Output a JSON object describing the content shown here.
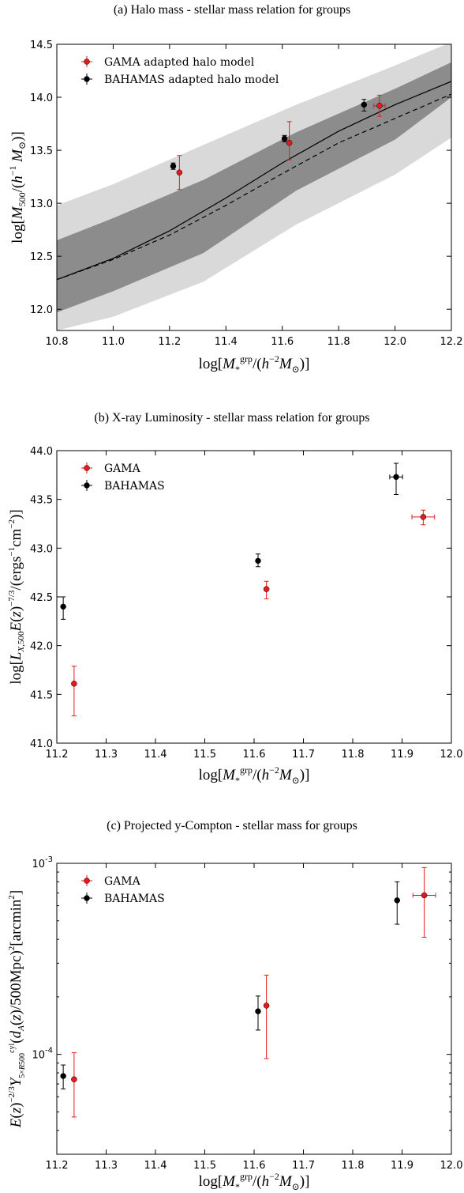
{
  "chart_data": [
    {
      "type": "line",
      "caption": "(a) Halo mass - stellar mass relation for groups",
      "xlabel": "log[M_*^grp/(h^-2 M_⊙)]",
      "ylabel": "log[M_500/(h^-1 M_⊙)]",
      "xlim": [
        10.8,
        12.2
      ],
      "ylim": [
        11.8,
        14.5
      ],
      "xticks": [
        "10.8",
        "11.0",
        "11.2",
        "11.4",
        "11.6",
        "11.8",
        "12.0",
        "12.2"
      ],
      "yticks": [
        "12.0",
        "12.5",
        "13.0",
        "13.5",
        "14.0",
        "14.5"
      ],
      "bands": [
        {
          "kind": "outer",
          "color": "#d9d9d9",
          "x": [
            10.8,
            11.0,
            11.32,
            11.65,
            12.0,
            12.2
          ],
          "upper": [
            12.98,
            13.18,
            13.55,
            13.93,
            14.3,
            14.52
          ],
          "lower": [
            11.8,
            11.93,
            12.26,
            12.8,
            13.27,
            13.62
          ]
        },
        {
          "kind": "inner",
          "color": "#8c8c8c",
          "x": [
            10.8,
            11.0,
            11.32,
            11.65,
            12.0,
            12.2
          ],
          "upper": [
            12.65,
            12.86,
            13.22,
            13.67,
            14.08,
            14.33
          ],
          "lower": [
            11.97,
            12.17,
            12.53,
            13.12,
            13.6,
            14.0
          ]
        }
      ],
      "lines": [
        {
          "style": "solid",
          "x": [
            10.8,
            11.0,
            11.2,
            11.4,
            11.6,
            11.8,
            12.0,
            12.2
          ],
          "y": [
            12.28,
            12.48,
            12.74,
            13.05,
            13.38,
            13.68,
            13.93,
            14.15
          ]
        },
        {
          "style": "dashed",
          "x": [
            10.8,
            11.0,
            11.2,
            11.4,
            11.6,
            11.8,
            12.0,
            12.2
          ],
          "y": [
            12.28,
            12.47,
            12.7,
            12.98,
            13.28,
            13.57,
            13.8,
            14.03
          ]
        }
      ],
      "series": [
        {
          "name": "GAMA adapted halo model",
          "color": "#e41a1c",
          "x": [
            11.235,
            11.625,
            11.945
          ],
          "y": [
            13.29,
            13.57,
            13.92
          ],
          "yerr_low": [
            0.16,
            0.16,
            0.1
          ],
          "yerr_high": [
            0.16,
            0.2,
            0.1
          ],
          "xerr": [
            0,
            0,
            0.02
          ]
        },
        {
          "name": "BAHAMAS adapted halo model",
          "color": "#000000",
          "x": [
            11.213,
            11.608,
            11.89
          ],
          "y": [
            13.35,
            13.61,
            13.93
          ],
          "yerr_low": [
            0.03,
            0.03,
            0.06
          ],
          "yerr_high": [
            0.03,
            0.03,
            0.05
          ],
          "xerr": [
            0,
            0,
            0
          ]
        }
      ],
      "legend": "top-left"
    },
    {
      "type": "scatter",
      "caption": "(b) X-ray Luminosity - stellar mass relation for groups",
      "xlabel": "log[M_*^grp/(h^-2 M_⊙)]",
      "ylabel": "log[L_X,500 E(z)^-7/3/(ergs^-1cm^-2)]",
      "xlim": [
        11.2,
        12.0
      ],
      "ylim": [
        41.0,
        44.0
      ],
      "xticks": [
        "11.2",
        "11.3",
        "11.4",
        "11.5",
        "11.6",
        "11.7",
        "11.8",
        "11.9",
        "12.0"
      ],
      "yticks": [
        "41.0",
        "41.5",
        "42.0",
        "42.5",
        "43.0",
        "43.5",
        "44.0"
      ],
      "series": [
        {
          "name": "GAMA",
          "color": "#e41a1c",
          "x": [
            11.235,
            11.625,
            11.943
          ],
          "y": [
            41.61,
            42.58,
            43.32
          ],
          "yerr_low": [
            0.33,
            0.1,
            0.08
          ],
          "yerr_high": [
            0.18,
            0.08,
            0.07
          ],
          "xerr": [
            0,
            0,
            0.023
          ]
        },
        {
          "name": "BAHAMAS",
          "color": "#000000",
          "x": [
            11.213,
            11.608,
            11.888
          ],
          "y": [
            42.4,
            42.87,
            43.73
          ],
          "yerr_low": [
            0.13,
            0.06,
            0.18
          ],
          "yerr_high": [
            0.1,
            0.07,
            0.14
          ],
          "xerr": [
            0,
            0,
            0.013
          ]
        }
      ],
      "legend": "top-left"
    },
    {
      "type": "scatter",
      "caption": "(c) Projected y-Compton - stellar mass for groups",
      "xlabel": "log[M_*^grp/(h^-2 M_⊙)]",
      "ylabel": "E(z)^-2/3 Y^cyl_5×R500 (d_A(z)/500Mpc)^2 [arcmin^2]",
      "xlim": [
        11.2,
        12.0
      ],
      "ylim": [
        3e-05,
        0.001
      ],
      "log_y": true,
      "xticks": [
        "11.2",
        "11.3",
        "11.4",
        "11.5",
        "11.6",
        "11.7",
        "11.8",
        "11.9",
        "12.0"
      ],
      "yticks": [
        {
          "base": "10",
          "exp": "-4",
          "value": 0.0001
        },
        {
          "base": "10",
          "exp": "-3",
          "value": 0.001
        }
      ],
      "series": [
        {
          "name": "GAMA",
          "color": "#e41a1c",
          "x": [
            11.235,
            11.625,
            11.945
          ],
          "y": [
            7.4e-05,
            0.00018,
            0.00068
          ],
          "yerr_low": [
            2.7e-05,
            8.5e-05,
            0.00027
          ],
          "yerr_high": [
            2.8e-05,
            8e-05,
            0.00027
          ],
          "xerr": [
            0,
            0,
            0.023
          ]
        },
        {
          "name": "BAHAMAS",
          "color": "#000000",
          "x": [
            11.213,
            11.608,
            11.89
          ],
          "y": [
            7.7e-05,
            0.000168,
            0.00064
          ],
          "yerr_low": [
            1.1e-05,
            3.4e-05,
            0.00016
          ],
          "yerr_high": [
            1.1e-05,
            3.4e-05,
            0.00016
          ],
          "xerr": [
            0,
            0,
            0
          ]
        }
      ],
      "legend": "top-left"
    }
  ]
}
